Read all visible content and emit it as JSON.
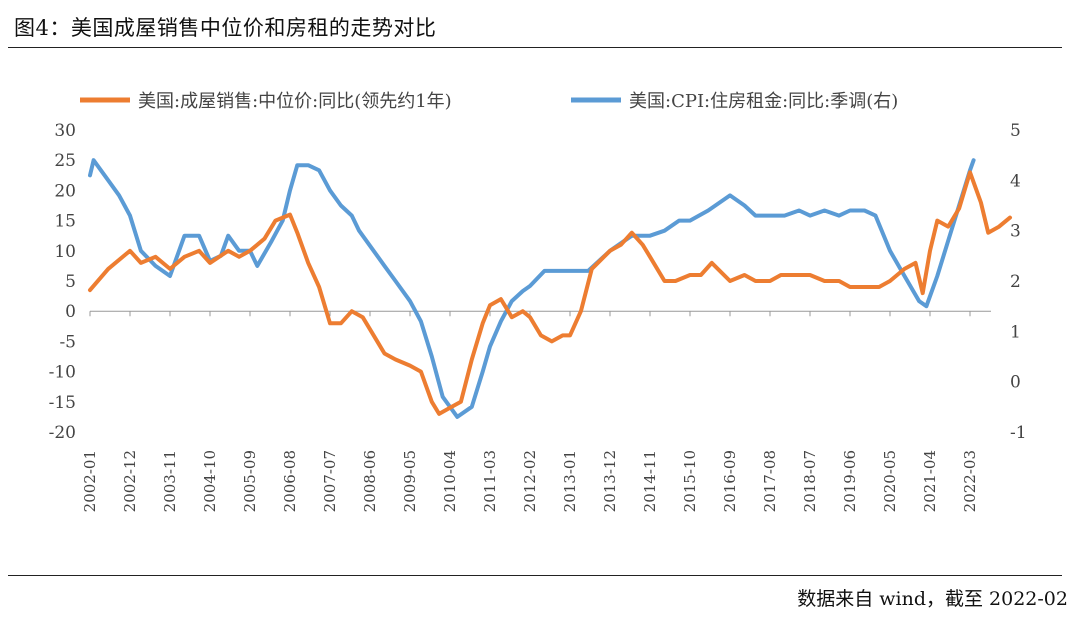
{
  "figure_title": "图4：美国成屋销售中位价和房租的走势对比",
  "source_note": "数据来自 wind，截至 2022-02",
  "colors": {
    "orange": "#ED7D31",
    "blue": "#5B9BD5"
  },
  "chart_data": {
    "type": "line",
    "title": "",
    "legend_position": "top",
    "grid": false,
    "x_ticks": [
      "2002-01",
      "2002-12",
      "2003-11",
      "2004-10",
      "2005-09",
      "2006-08",
      "2007-07",
      "2008-06",
      "2009-05",
      "2010-04",
      "2011-03",
      "2012-02",
      "2013-01",
      "2013-12",
      "2014-11",
      "2015-10",
      "2016-09",
      "2017-08",
      "2018-07",
      "2019-06",
      "2020-05",
      "2021-04",
      "2022-03"
    ],
    "y_left": {
      "range": [
        -20,
        30
      ],
      "ticks": [
        "30",
        "25",
        "20",
        "15",
        "10",
        "5",
        "0",
        "-5",
        "-10",
        "-15",
        "-20"
      ]
    },
    "y_right": {
      "range": [
        -1,
        5
      ],
      "ticks": [
        "5",
        "4",
        "3",
        "2",
        "1",
        "0",
        "-1"
      ]
    },
    "series": [
      {
        "name": "美国:成屋销售:中位价:同比(领先约1年)",
        "axis": "left",
        "color": "#ED7D31",
        "points": [
          [
            "2002-01",
            3.5
          ],
          [
            "2002-06",
            7
          ],
          [
            "2002-12",
            10
          ],
          [
            "2003-03",
            8
          ],
          [
            "2003-07",
            9
          ],
          [
            "2003-11",
            7
          ],
          [
            "2004-03",
            9
          ],
          [
            "2004-07",
            10
          ],
          [
            "2004-10",
            8
          ],
          [
            "2005-03",
            10
          ],
          [
            "2005-06",
            9
          ],
          [
            "2005-09",
            10
          ],
          [
            "2006-01",
            12
          ],
          [
            "2006-04",
            15
          ],
          [
            "2006-08",
            16
          ],
          [
            "2006-10",
            13
          ],
          [
            "2007-01",
            8
          ],
          [
            "2007-04",
            4
          ],
          [
            "2007-07",
            -2
          ],
          [
            "2007-10",
            -2
          ],
          [
            "2008-01",
            0
          ],
          [
            "2008-04",
            -1
          ],
          [
            "2008-06",
            -3
          ],
          [
            "2008-10",
            -7
          ],
          [
            "2009-01",
            -8
          ],
          [
            "2009-05",
            -9
          ],
          [
            "2009-08",
            -10
          ],
          [
            "2009-11",
            -15
          ],
          [
            "2010-01",
            -17
          ],
          [
            "2010-04",
            -16
          ],
          [
            "2010-07",
            -15
          ],
          [
            "2010-10",
            -8
          ],
          [
            "2011-01",
            -2
          ],
          [
            "2011-03",
            1
          ],
          [
            "2011-06",
            2
          ],
          [
            "2011-09",
            -1
          ],
          [
            "2011-12",
            0
          ],
          [
            "2012-02",
            -1
          ],
          [
            "2012-05",
            -4
          ],
          [
            "2012-08",
            -5
          ],
          [
            "2012-11",
            -4
          ],
          [
            "2013-01",
            -4
          ],
          [
            "2013-04",
            0
          ],
          [
            "2013-07",
            7
          ],
          [
            "2013-12",
            10
          ],
          [
            "2014-03",
            11
          ],
          [
            "2014-06",
            13
          ],
          [
            "2014-09",
            11
          ],
          [
            "2014-11",
            9
          ],
          [
            "2015-03",
            5
          ],
          [
            "2015-06",
            5
          ],
          [
            "2015-10",
            6
          ],
          [
            "2016-01",
            6
          ],
          [
            "2016-04",
            8
          ],
          [
            "2016-09",
            5
          ],
          [
            "2017-01",
            6
          ],
          [
            "2017-04",
            5
          ],
          [
            "2017-08",
            5
          ],
          [
            "2017-11",
            6
          ],
          [
            "2018-03",
            6
          ],
          [
            "2018-07",
            6
          ],
          [
            "2018-11",
            5
          ],
          [
            "2019-03",
            5
          ],
          [
            "2019-06",
            4
          ],
          [
            "2019-10",
            4
          ],
          [
            "2020-02",
            4
          ],
          [
            "2020-05",
            5
          ],
          [
            "2020-09",
            7
          ],
          [
            "2020-12",
            8
          ],
          [
            "2021-02",
            3
          ],
          [
            "2021-04",
            10
          ],
          [
            "2021-06",
            15
          ],
          [
            "2021-09",
            14
          ],
          [
            "2021-12",
            17
          ],
          [
            "2022-03",
            23
          ],
          [
            "2022-06",
            18
          ],
          [
            "2022-08",
            13
          ],
          [
            "2022-11",
            14
          ],
          [
            "2023-02",
            15.5
          ]
        ]
      },
      {
        "name": "美国:CPI:住房租金:同比:季调(右)",
        "axis": "right",
        "color": "#5B9BD5",
        "points": [
          [
            "2002-01",
            4.1
          ],
          [
            "2002-02",
            4.4
          ],
          [
            "2002-06",
            4.0
          ],
          [
            "2002-09",
            3.7
          ],
          [
            "2002-12",
            3.3
          ],
          [
            "2003-03",
            2.6
          ],
          [
            "2003-07",
            2.3
          ],
          [
            "2003-11",
            2.1
          ],
          [
            "2004-03",
            2.9
          ],
          [
            "2004-07",
            2.9
          ],
          [
            "2004-10",
            2.4
          ],
          [
            "2005-01",
            2.5
          ],
          [
            "2005-03",
            2.9
          ],
          [
            "2005-06",
            2.6
          ],
          [
            "2005-09",
            2.6
          ],
          [
            "2005-11",
            2.3
          ],
          [
            "2006-03",
            2.8
          ],
          [
            "2006-06",
            3.2
          ],
          [
            "2006-08",
            3.8
          ],
          [
            "2006-10",
            4.3
          ],
          [
            "2007-01",
            4.3
          ],
          [
            "2007-04",
            4.2
          ],
          [
            "2007-07",
            3.8
          ],
          [
            "2007-10",
            3.5
          ],
          [
            "2008-01",
            3.3
          ],
          [
            "2008-03",
            3.0
          ],
          [
            "2008-06",
            2.7
          ],
          [
            "2008-10",
            2.3
          ],
          [
            "2009-01",
            2.0
          ],
          [
            "2009-05",
            1.6
          ],
          [
            "2009-08",
            1.2
          ],
          [
            "2009-11",
            0.5
          ],
          [
            "2010-02",
            -0.3
          ],
          [
            "2010-06",
            -0.7
          ],
          [
            "2010-10",
            -0.5
          ],
          [
            "2011-01",
            0.2
          ],
          [
            "2011-03",
            0.7
          ],
          [
            "2011-06",
            1.2
          ],
          [
            "2011-09",
            1.6
          ],
          [
            "2011-12",
            1.8
          ],
          [
            "2012-02",
            1.9
          ],
          [
            "2012-06",
            2.2
          ],
          [
            "2012-09",
            2.2
          ],
          [
            "2013-01",
            2.2
          ],
          [
            "2013-06",
            2.2
          ],
          [
            "2013-12",
            2.6
          ],
          [
            "2014-06",
            2.9
          ],
          [
            "2014-11",
            2.9
          ],
          [
            "2015-03",
            3.0
          ],
          [
            "2015-07",
            3.2
          ],
          [
            "2015-10",
            3.2
          ],
          [
            "2016-03",
            3.4
          ],
          [
            "2016-09",
            3.7
          ],
          [
            "2017-01",
            3.5
          ],
          [
            "2017-04",
            3.3
          ],
          [
            "2017-08",
            3.3
          ],
          [
            "2017-12",
            3.3
          ],
          [
            "2018-04",
            3.4
          ],
          [
            "2018-07",
            3.3
          ],
          [
            "2018-11",
            3.4
          ],
          [
            "2019-03",
            3.3
          ],
          [
            "2019-06",
            3.4
          ],
          [
            "2019-10",
            3.4
          ],
          [
            "2020-01",
            3.3
          ],
          [
            "2020-05",
            2.6
          ],
          [
            "2020-09",
            2.1
          ],
          [
            "2021-01",
            1.6
          ],
          [
            "2021-03",
            1.5
          ],
          [
            "2021-06",
            2.1
          ],
          [
            "2021-09",
            2.8
          ],
          [
            "2021-12",
            3.5
          ],
          [
            "2022-03",
            4.2
          ],
          [
            "2022-04",
            4.4
          ]
        ]
      }
    ]
  }
}
